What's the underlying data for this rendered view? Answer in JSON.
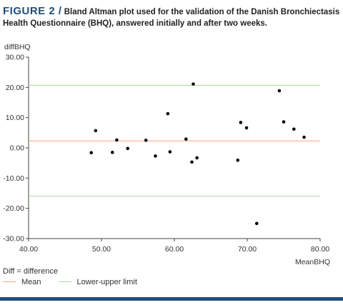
{
  "caption": {
    "figure_label": "FIGURE 2 /",
    "text": "Bland Altman plot used for the validation of the Danish Bronchiectasis Health Questionnaire (BHQ), answered initially and after two weeks."
  },
  "legend": {
    "note": "Diff = difference",
    "mean_label": "Mean",
    "limits_label": "Lower-upper limit"
  },
  "colors": {
    "mean_line": "#f4a582",
    "limit_lines": "#a6d99a",
    "points": "#000000",
    "figure_label": "#1f4e79",
    "bottom_rule": "#1f4e79"
  },
  "chart_data": {
    "type": "scatter",
    "xlabel": "MeanBHQ",
    "ylabel": "diffBHQ",
    "xlim": [
      40,
      80
    ],
    "ylim": [
      -30,
      30
    ],
    "x_ticks": [
      "40.00",
      "50.00",
      "60.00",
      "70.00",
      "80.00"
    ],
    "y_ticks": [
      "30.00",
      "20.00",
      "10.00",
      "0.00",
      "-10.00",
      "-20.00",
      "-30.00"
    ],
    "x_tick_values": [
      40,
      50,
      60,
      70,
      80
    ],
    "y_tick_values": [
      30,
      20,
      10,
      0,
      -10,
      -20,
      -30
    ],
    "grid": false,
    "reference_lines": {
      "mean": 2.3,
      "upper_limit": 20.7,
      "lower_limit": -16.0
    },
    "points": [
      {
        "x": 48.6,
        "y": -1.6
      },
      {
        "x": 49.2,
        "y": 5.7
      },
      {
        "x": 51.5,
        "y": -1.5
      },
      {
        "x": 52.1,
        "y": 2.6
      },
      {
        "x": 53.6,
        "y": -0.2
      },
      {
        "x": 56.1,
        "y": 2.5
      },
      {
        "x": 57.4,
        "y": -2.7
      },
      {
        "x": 59.1,
        "y": 11.3
      },
      {
        "x": 59.4,
        "y": -1.3
      },
      {
        "x": 61.6,
        "y": 2.9
      },
      {
        "x": 62.4,
        "y": -4.7
      },
      {
        "x": 62.6,
        "y": 21.1
      },
      {
        "x": 63.1,
        "y": -3.3
      },
      {
        "x": 68.7,
        "y": -4.1
      },
      {
        "x": 69.1,
        "y": 8.4
      },
      {
        "x": 69.9,
        "y": 6.6
      },
      {
        "x": 71.3,
        "y": -25.0
      },
      {
        "x": 74.4,
        "y": 18.9
      },
      {
        "x": 75.0,
        "y": 8.6
      },
      {
        "x": 76.4,
        "y": 6.2
      },
      {
        "x": 77.8,
        "y": 3.5
      }
    ]
  }
}
